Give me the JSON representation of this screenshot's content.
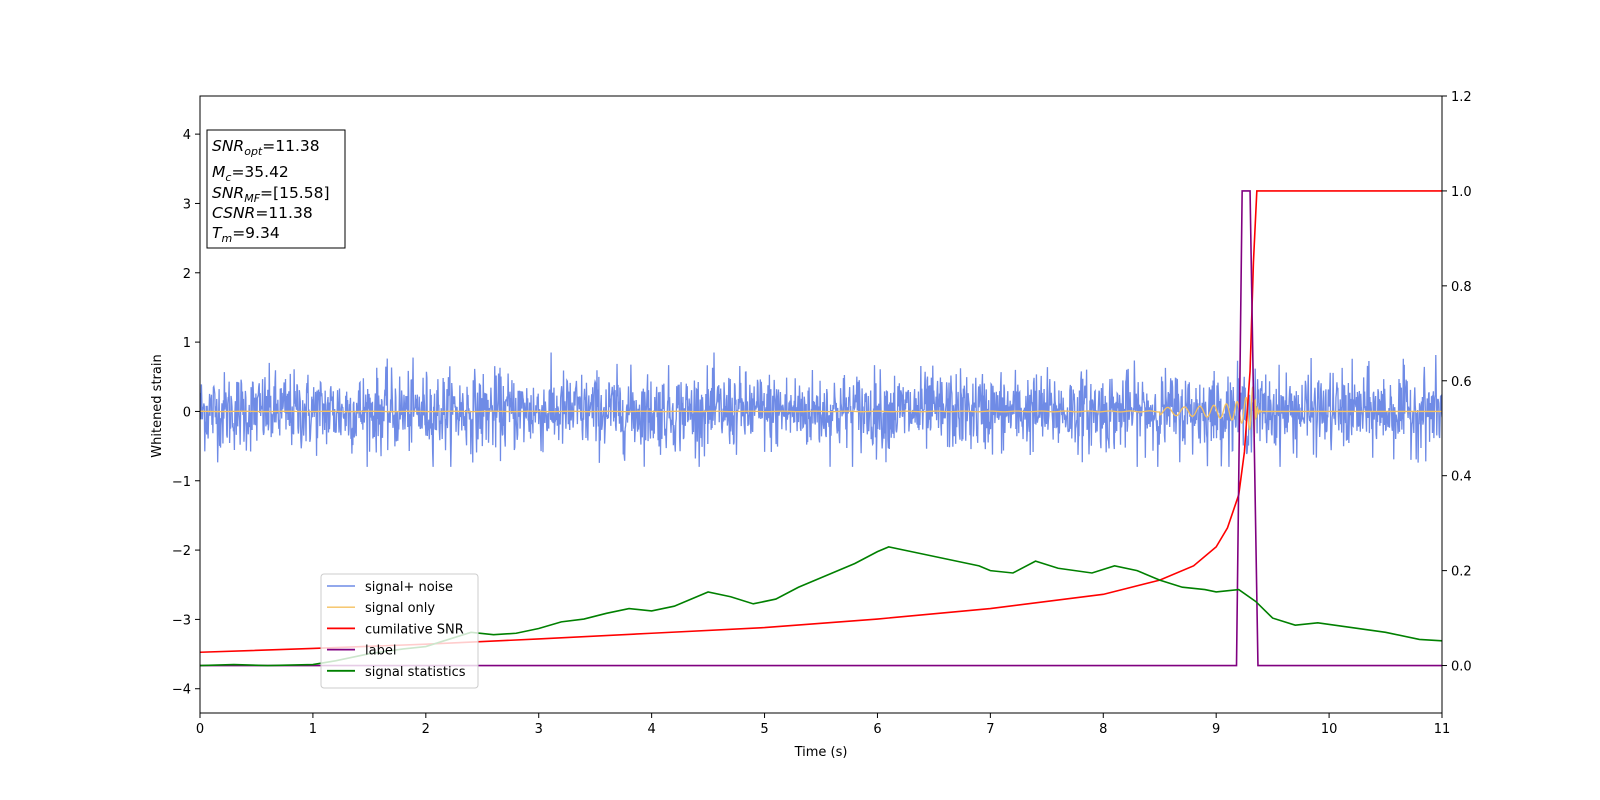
{
  "chart_data": {
    "type": "line",
    "xlabel": "Time (s)",
    "ylabel": "Whitened strain",
    "xlim": [
      0,
      11
    ],
    "ylim_left": [
      -4.35,
      4.55
    ],
    "ylim_right": [
      -0.1,
      1.2
    ],
    "x_ticks": [
      0,
      1,
      2,
      3,
      4,
      5,
      6,
      7,
      8,
      9,
      10,
      11
    ],
    "y_ticks_left": [
      4,
      3,
      2,
      1,
      0,
      -1,
      -2,
      -3,
      -4
    ],
    "y_ticks_left_labels": [
      "4",
      "3",
      "2",
      "1",
      "0",
      "−1",
      "−2",
      "−3",
      "−4"
    ],
    "y_ticks_right": [
      1.2,
      1.0,
      0.8,
      0.6,
      0.4,
      0.2,
      0.0
    ],
    "y_ticks_right_labels": [
      "1.2",
      "1.0",
      "0.8",
      "0.6",
      "0.4",
      "0.2",
      "0.0"
    ],
    "grid": false,
    "legend_position": "lower-left",
    "series": [
      {
        "name": "signal+ noise",
        "axis": "left",
        "color": "#6f8be6",
        "style": "noise",
        "amplitude": 0.28,
        "x_range": [
          0,
          11
        ]
      },
      {
        "name": "signal only",
        "axis": "left",
        "color": "#f5c15f",
        "style": "chirp",
        "merger_time": 9.34,
        "x_range": [
          0,
          11
        ]
      },
      {
        "name": "cumilative SNR",
        "axis": "right",
        "color": "#ff0000",
        "x": [
          0,
          1,
          2,
          3,
          4,
          5,
          6,
          7,
          8,
          8.5,
          8.8,
          9.0,
          9.1,
          9.2,
          9.25,
          9.3,
          9.33,
          9.36,
          9.4,
          10,
          11
        ],
        "y": [
          0.028,
          0.036,
          0.045,
          0.056,
          0.068,
          0.08,
          0.098,
          0.12,
          0.15,
          0.18,
          0.21,
          0.25,
          0.29,
          0.36,
          0.45,
          0.62,
          0.85,
          1.0,
          1.0,
          1.0,
          1.0
        ]
      },
      {
        "name": "label",
        "axis": "right",
        "color": "#800080",
        "x": [
          0,
          9.18,
          9.23,
          9.3,
          9.37,
          11
        ],
        "y": [
          0,
          0,
          1.0,
          1.0,
          0,
          0
        ]
      },
      {
        "name": "signal statistics",
        "axis": "right",
        "color": "#008000",
        "x": [
          0,
          0.3,
          0.6,
          1.0,
          1.2,
          1.5,
          1.8,
          2.0,
          2.2,
          2.4,
          2.6,
          2.8,
          3.0,
          3.2,
          3.4,
          3.6,
          3.8,
          4.0,
          4.2,
          4.5,
          4.7,
          4.9,
          5.1,
          5.3,
          5.5,
          5.8,
          6.0,
          6.1,
          6.3,
          6.5,
          6.7,
          6.9,
          7.0,
          7.2,
          7.4,
          7.6,
          7.9,
          8.1,
          8.3,
          8.5,
          8.7,
          8.9,
          9.0,
          9.2,
          9.35,
          9.5,
          9.7,
          9.9,
          10.2,
          10.5,
          10.8,
          11.0
        ],
        "y": [
          0.0,
          0.002,
          0.0,
          0.002,
          0.01,
          0.025,
          0.035,
          0.04,
          0.055,
          0.07,
          0.065,
          0.068,
          0.078,
          0.092,
          0.098,
          0.11,
          0.12,
          0.115,
          0.125,
          0.155,
          0.145,
          0.13,
          0.14,
          0.165,
          0.185,
          0.215,
          0.24,
          0.25,
          0.24,
          0.23,
          0.22,
          0.21,
          0.2,
          0.195,
          0.22,
          0.205,
          0.195,
          0.21,
          0.2,
          0.18,
          0.165,
          0.16,
          0.155,
          0.16,
          0.135,
          0.1,
          0.085,
          0.09,
          0.08,
          0.07,
          0.055,
          0.052
        ]
      }
    ],
    "annotation_box": {
      "lines": [
        {
          "base": "SNR",
          "sub": "opt",
          "value": "=11.38"
        },
        {
          "base": "M",
          "sub": "c",
          "value": "=35.42"
        },
        {
          "base": "SNR",
          "sub": "MF",
          "value": "=[15.58]"
        },
        {
          "base": "CSNR",
          "sub": "",
          "value": "=11.38"
        },
        {
          "base": "T",
          "sub": "m",
          "value": "=9.34"
        }
      ]
    }
  }
}
